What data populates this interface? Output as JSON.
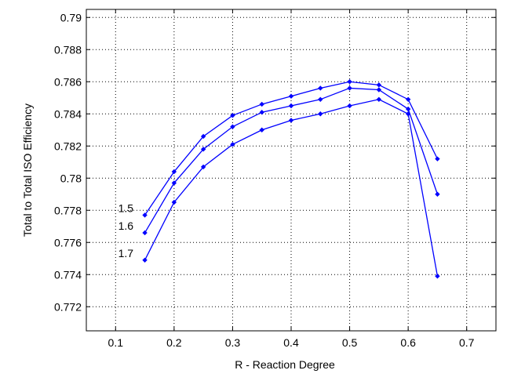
{
  "chart_data": {
    "type": "line",
    "title": "",
    "xlabel": "R - Reaction Degree",
    "ylabel": "Total to Total ISO Efficiency",
    "xlim": [
      0.05,
      0.75
    ],
    "ylim": [
      0.7705,
      0.7905
    ],
    "xticks": [
      "0.1",
      "0.2",
      "0.3",
      "0.4",
      "0.5",
      "0.6",
      "0.7"
    ],
    "yticks": [
      "0.772",
      "0.774",
      "0.776",
      "0.778",
      "0.78",
      "0.782",
      "0.784",
      "0.786",
      "0.788",
      "0.79"
    ],
    "grid": true,
    "line_color": "#0000ff",
    "series": [
      {
        "name": "1.5",
        "x": [
          0.15,
          0.2,
          0.25,
          0.3,
          0.35,
          0.4,
          0.45,
          0.5,
          0.55,
          0.6,
          0.65
        ],
        "y": [
          0.7777,
          0.7804,
          0.7826,
          0.7839,
          0.7846,
          0.7851,
          0.7856,
          0.786,
          0.7858,
          0.7849,
          0.7812
        ]
      },
      {
        "name": "1.6",
        "x": [
          0.15,
          0.2,
          0.25,
          0.3,
          0.35,
          0.4,
          0.45,
          0.5,
          0.55,
          0.6,
          0.65
        ],
        "y": [
          0.7766,
          0.7797,
          0.7818,
          0.7832,
          0.7841,
          0.7845,
          0.7849,
          0.7856,
          0.7855,
          0.7843,
          0.779
        ]
      },
      {
        "name": "1.7",
        "x": [
          0.15,
          0.2,
          0.25,
          0.3,
          0.35,
          0.4,
          0.45,
          0.5,
          0.55,
          0.6,
          0.65
        ],
        "y": [
          0.7749,
          0.7785,
          0.7807,
          0.7821,
          0.783,
          0.7836,
          0.784,
          0.7845,
          0.7849,
          0.784,
          0.7739
        ]
      }
    ]
  }
}
